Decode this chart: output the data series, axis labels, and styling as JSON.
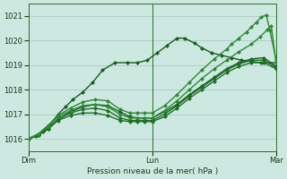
{
  "title": "Pression niveau de la mer( hPa )",
  "bg_color": "#cde8e0",
  "grid_color": "#9ec8be",
  "line_colors": [
    "#1a5c20",
    "#1a5c20",
    "#1e6e24",
    "#1e6e24",
    "#2d8a35",
    "#2d8a35"
  ],
  "ylim": [
    1015.5,
    1021.5
  ],
  "yticks": [
    1016,
    1017,
    1018,
    1019,
    1020,
    1021
  ],
  "xtick_labels": [
    "Dim",
    "Lun",
    "Mar"
  ],
  "xtick_positions": [
    0.0,
    0.5,
    1.0
  ],
  "series": [
    [
      0.0,
      1016.0
    ],
    [
      0.03,
      1016.1
    ],
    [
      0.06,
      1016.3
    ],
    [
      0.09,
      1016.6
    ],
    [
      0.12,
      1017.0
    ],
    [
      0.15,
      1017.3
    ],
    [
      0.18,
      1017.6
    ],
    [
      0.22,
      1017.9
    ],
    [
      0.26,
      1018.3
    ],
    [
      0.3,
      1018.8
    ],
    [
      0.35,
      1019.1
    ],
    [
      0.4,
      1019.1
    ],
    [
      0.44,
      1019.1
    ],
    [
      0.48,
      1019.2
    ],
    [
      0.52,
      1019.5
    ],
    [
      0.56,
      1019.8
    ],
    [
      0.6,
      1020.1
    ],
    [
      0.63,
      1020.1
    ],
    [
      0.67,
      1019.9
    ],
    [
      0.7,
      1019.7
    ],
    [
      0.74,
      1019.5
    ],
    [
      0.78,
      1019.4
    ],
    [
      0.82,
      1019.3
    ],
    [
      0.86,
      1019.2
    ],
    [
      0.9,
      1019.15
    ],
    [
      0.94,
      1019.1
    ],
    [
      1.0,
      1019.1
    ]
  ],
  "s2": [
    [
      0.0,
      1016.0
    ],
    [
      0.04,
      1016.15
    ],
    [
      0.08,
      1016.4
    ],
    [
      0.12,
      1016.8
    ],
    [
      0.17,
      1017.1
    ],
    [
      0.22,
      1017.3
    ],
    [
      0.27,
      1017.4
    ],
    [
      0.32,
      1017.35
    ],
    [
      0.37,
      1017.1
    ],
    [
      0.41,
      1016.9
    ],
    [
      0.44,
      1016.85
    ],
    [
      0.47,
      1016.85
    ],
    [
      0.5,
      1016.85
    ],
    [
      0.55,
      1017.1
    ],
    [
      0.6,
      1017.4
    ],
    [
      0.65,
      1017.8
    ],
    [
      0.7,
      1018.15
    ],
    [
      0.75,
      1018.5
    ],
    [
      0.8,
      1018.85
    ],
    [
      0.85,
      1019.1
    ],
    [
      0.9,
      1019.25
    ],
    [
      0.95,
      1019.3
    ],
    [
      1.0,
      1018.95
    ]
  ],
  "s3": [
    [
      0.0,
      1016.0
    ],
    [
      0.04,
      1016.15
    ],
    [
      0.08,
      1016.4
    ],
    [
      0.12,
      1016.8
    ],
    [
      0.17,
      1017.05
    ],
    [
      0.22,
      1017.2
    ],
    [
      0.27,
      1017.25
    ],
    [
      0.32,
      1017.15
    ],
    [
      0.37,
      1016.85
    ],
    [
      0.41,
      1016.75
    ],
    [
      0.44,
      1016.75
    ],
    [
      0.47,
      1016.75
    ],
    [
      0.5,
      1016.75
    ],
    [
      0.55,
      1017.0
    ],
    [
      0.6,
      1017.35
    ],
    [
      0.65,
      1017.75
    ],
    [
      0.7,
      1018.1
    ],
    [
      0.75,
      1018.45
    ],
    [
      0.8,
      1018.8
    ],
    [
      0.85,
      1019.05
    ],
    [
      0.9,
      1019.2
    ],
    [
      0.95,
      1019.2
    ],
    [
      1.0,
      1018.9
    ]
  ],
  "s4": [
    [
      0.0,
      1016.0
    ],
    [
      0.04,
      1016.15
    ],
    [
      0.08,
      1016.4
    ],
    [
      0.12,
      1016.75
    ],
    [
      0.17,
      1016.95
    ],
    [
      0.22,
      1017.05
    ],
    [
      0.27,
      1017.05
    ],
    [
      0.32,
      1016.95
    ],
    [
      0.37,
      1016.75
    ],
    [
      0.41,
      1016.7
    ],
    [
      0.44,
      1016.7
    ],
    [
      0.47,
      1016.7
    ],
    [
      0.5,
      1016.7
    ],
    [
      0.55,
      1016.9
    ],
    [
      0.6,
      1017.25
    ],
    [
      0.65,
      1017.65
    ],
    [
      0.7,
      1018.0
    ],
    [
      0.75,
      1018.35
    ],
    [
      0.8,
      1018.7
    ],
    [
      0.85,
      1018.95
    ],
    [
      0.9,
      1019.1
    ],
    [
      0.95,
      1019.1
    ],
    [
      1.0,
      1018.85
    ]
  ],
  "s5": [
    [
      0.0,
      1016.0
    ],
    [
      0.04,
      1016.2
    ],
    [
      0.08,
      1016.5
    ],
    [
      0.12,
      1016.9
    ],
    [
      0.17,
      1017.15
    ],
    [
      0.22,
      1017.35
    ],
    [
      0.27,
      1017.4
    ],
    [
      0.32,
      1017.3
    ],
    [
      0.37,
      1017.0
    ],
    [
      0.41,
      1016.85
    ],
    [
      0.44,
      1016.85
    ],
    [
      0.47,
      1016.85
    ],
    [
      0.5,
      1016.85
    ],
    [
      0.55,
      1017.15
    ],
    [
      0.6,
      1017.55
    ],
    [
      0.65,
      1018.0
    ],
    [
      0.7,
      1018.45
    ],
    [
      0.75,
      1018.85
    ],
    [
      0.8,
      1019.2
    ],
    [
      0.85,
      1019.55
    ],
    [
      0.9,
      1019.85
    ],
    [
      0.935,
      1020.15
    ],
    [
      0.965,
      1020.45
    ],
    [
      0.98,
      1020.6
    ],
    [
      1.0,
      1019.1
    ]
  ],
  "s6": [
    [
      0.0,
      1016.0
    ],
    [
      0.04,
      1016.2
    ],
    [
      0.08,
      1016.55
    ],
    [
      0.12,
      1016.95
    ],
    [
      0.17,
      1017.25
    ],
    [
      0.22,
      1017.5
    ],
    [
      0.27,
      1017.6
    ],
    [
      0.32,
      1017.55
    ],
    [
      0.37,
      1017.2
    ],
    [
      0.41,
      1017.05
    ],
    [
      0.44,
      1017.05
    ],
    [
      0.47,
      1017.05
    ],
    [
      0.5,
      1017.05
    ],
    [
      0.55,
      1017.35
    ],
    [
      0.6,
      1017.8
    ],
    [
      0.65,
      1018.3
    ],
    [
      0.7,
      1018.8
    ],
    [
      0.75,
      1019.25
    ],
    [
      0.8,
      1019.65
    ],
    [
      0.82,
      1019.85
    ],
    [
      0.85,
      1020.1
    ],
    [
      0.88,
      1020.35
    ],
    [
      0.9,
      1020.55
    ],
    [
      0.92,
      1020.75
    ],
    [
      0.94,
      1020.95
    ],
    [
      0.96,
      1021.05
    ],
    [
      0.975,
      1020.4
    ],
    [
      1.0,
      1019.2
    ]
  ],
  "marker_size": 2.5,
  "linewidth": 1.0
}
